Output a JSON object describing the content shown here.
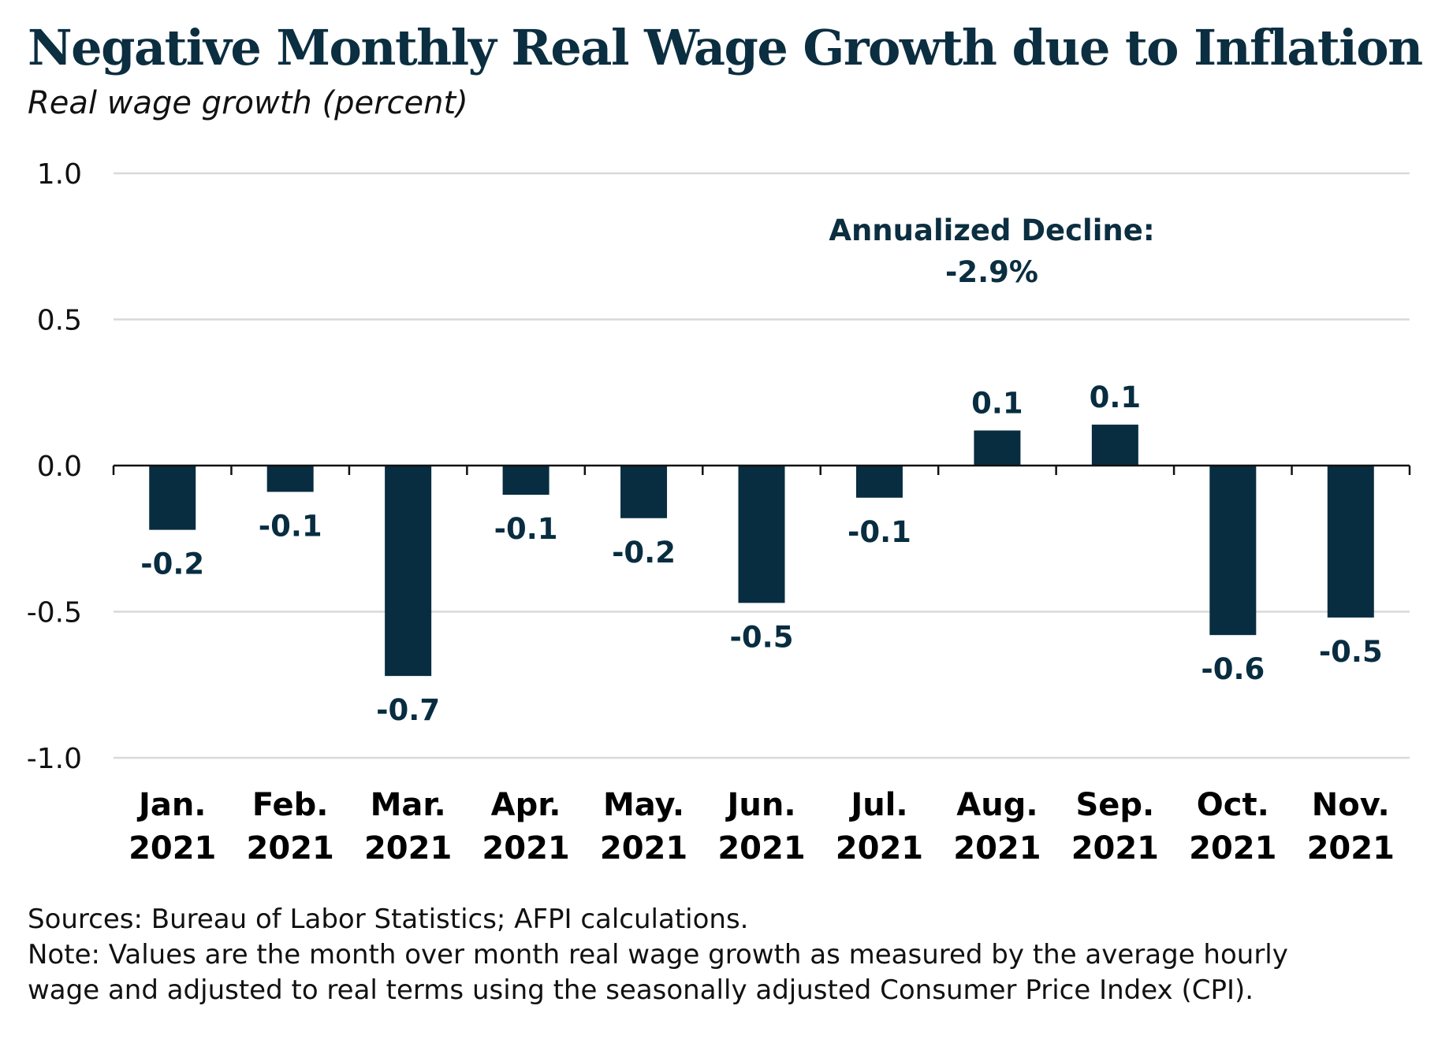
{
  "title": "Negative Monthly Real Wage Growth due to Inflation",
  "subtitle": "Real wage growth (percent)",
  "chart_data": {
    "type": "bar",
    "categories": [
      [
        "Jan.",
        "2021"
      ],
      [
        "Feb.",
        "2021"
      ],
      [
        "Mar.",
        "2021"
      ],
      [
        "Apr.",
        "2021"
      ],
      [
        "May.",
        "2021"
      ],
      [
        "Jun.",
        "2021"
      ],
      [
        "Jul.",
        "2021"
      ],
      [
        "Aug.",
        "2021"
      ],
      [
        "Sep.",
        "2021"
      ],
      [
        "Oct.",
        "2021"
      ],
      [
        "Nov.",
        "2021"
      ]
    ],
    "values": [
      -0.22,
      -0.09,
      -0.72,
      -0.1,
      -0.18,
      -0.47,
      -0.11,
      0.12,
      0.14,
      -0.58,
      -0.52
    ],
    "labels": [
      "-0.2",
      "-0.1",
      "-0.7",
      "-0.1",
      "-0.2",
      "-0.5",
      "-0.1",
      "0.1",
      "0.1",
      "-0.6",
      "-0.5"
    ],
    "ylim": [
      -1.0,
      1.0
    ],
    "yticks": [
      1.0,
      0.5,
      0.0,
      -0.5,
      -1.0
    ],
    "ytick_labels": [
      "1.0",
      "0.5",
      "0.0",
      "-0.5",
      "-1.0"
    ],
    "grid": true,
    "bar_color": "#082d41",
    "annotation": {
      "lines": [
        "Annualized Decline:",
        "-2.9%"
      ],
      "color": "#0b2e40"
    }
  },
  "footer": {
    "sources": "Sources: Bureau of Labor Statistics; AFPI calculations.",
    "note_line1": "Note: Values are the month over month real wage growth as measured by the average hourly",
    "note_line2": "wage and adjusted to real terms using the seasonally adjusted Consumer Price Index (CPI)."
  }
}
